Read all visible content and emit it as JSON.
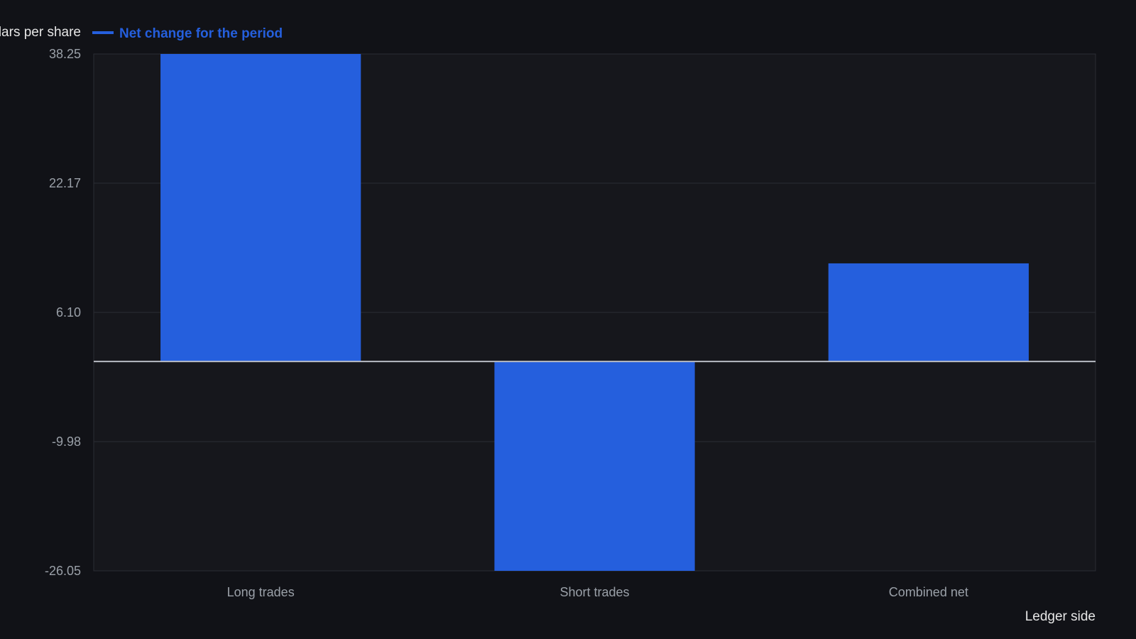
{
  "chart_data": {
    "type": "bar",
    "categories": [
      "Long trades",
      "Short trades",
      "Combined net"
    ],
    "series": [
      {
        "name": "Net change for the period",
        "color": "#255fdd",
        "values": [
          38.25,
          -26.05,
          12.2
        ]
      }
    ],
    "xlabel": "Ledger side",
    "ylabel": "dollars per share",
    "ylim": [
      -26.05,
      38.25
    ],
    "yticks": [
      38.25,
      22.17,
      6.1,
      -9.98,
      -26.05
    ],
    "ytick_labels": [
      "38.25",
      "22.17",
      "6.10",
      "-9.98",
      "-26.05"
    ],
    "grid": true,
    "legend_position": "top-left",
    "colors": {
      "background": "#111217",
      "plot_background": "#16171c",
      "grid": "#2a2c33",
      "zero_line": "#b8bcc4"
    }
  }
}
